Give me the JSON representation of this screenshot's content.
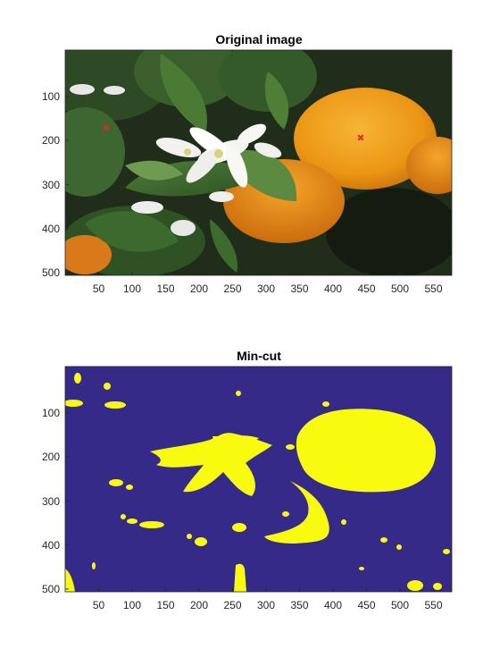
{
  "figure": {
    "axes": [
      {
        "id": "original",
        "title": "Original image",
        "x_ticks": [
          "50",
          "100",
          "150",
          "200",
          "250",
          "300",
          "350",
          "400",
          "450",
          "500",
          "550"
        ],
        "y_ticks": [
          "100",
          "200",
          "300",
          "400",
          "500"
        ],
        "markers": [
          {
            "symbol": "x",
            "color": "#e8222a",
            "x": 62,
            "y": 178
          },
          {
            "symbol": "x",
            "color": "#e8222a",
            "x": 442,
            "y": 197
          }
        ]
      },
      {
        "id": "mincut",
        "title": "Min-cut",
        "x_ticks": [
          "50",
          "100",
          "150",
          "200",
          "250",
          "300",
          "350",
          "400",
          "450",
          "500",
          "550"
        ],
        "y_ticks": [
          "100",
          "200",
          "300",
          "400",
          "500"
        ]
      }
    ],
    "x_range": [
      1,
      578
    ],
    "y_range": [
      1,
      512
    ],
    "colors": {
      "background_class": "#352a87",
      "foreground_class": "#f9fb0e",
      "orange": "#f0a21a",
      "leaf": "#3f6a2e",
      "flower": "#f5f5f2"
    }
  }
}
